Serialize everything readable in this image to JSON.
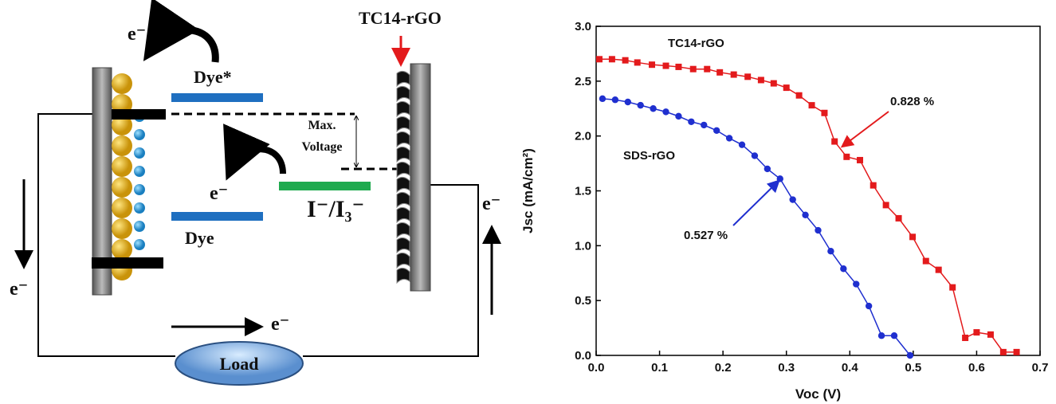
{
  "diagram": {
    "electron_top": "e⁻",
    "dye_excited": "Dye*",
    "max_voltage": [
      "Max.",
      "Voltage"
    ],
    "counter_electrode": "TC14-rGO",
    "electron_middle": "e⁻",
    "redox": "I⁻/I₃⁻",
    "dye_ground": "Dye",
    "electron_right": "e⁻",
    "electron_left": "e⁻",
    "electron_bottom": "e⁻",
    "load": "Load"
  },
  "chart_data": {
    "type": "line",
    "xlabel": "Voc (V)",
    "ylabel": "Jsc (mA/cm²)",
    "xlim": [
      0,
      0.7
    ],
    "ylim": [
      0,
      3.0
    ],
    "xticks": [
      {
        "value": 0,
        "label": "0.0"
      },
      0.1,
      0.2,
      0.3,
      0.4,
      0.5,
      0.6,
      0.7
    ],
    "yticks": [
      {
        "value": 0,
        "label": "0.0"
      },
      0.5,
      {
        "value": 1,
        "label": "1.0"
      },
      1.5,
      {
        "value": 2,
        "label": "2.0"
      },
      2.5,
      {
        "value": 3,
        "label": "3.0"
      }
    ],
    "annotations": [
      "0.828 %",
      "0.527 %"
    ],
    "series": [
      {
        "name": "TC14-rGO",
        "color": "#e31a1c",
        "marker": "square",
        "x": [
          0.005,
          0.025,
          0.046,
          0.065,
          0.088,
          0.11,
          0.13,
          0.153,
          0.175,
          0.195,
          0.217,
          0.239,
          0.26,
          0.28,
          0.3,
          0.32,
          0.34,
          0.36,
          0.376,
          0.395,
          0.416,
          0.437,
          0.457,
          0.477,
          0.499,
          0.52,
          0.54,
          0.562,
          0.582,
          0.6,
          0.622,
          0.642,
          0.663
        ],
        "values": [
          2.7,
          2.7,
          2.69,
          2.67,
          2.65,
          2.64,
          2.63,
          2.61,
          2.61,
          2.58,
          2.56,
          2.54,
          2.51,
          2.48,
          2.44,
          2.37,
          2.28,
          2.21,
          1.95,
          1.81,
          1.78,
          1.55,
          1.37,
          1.25,
          1.08,
          0.86,
          0.78,
          0.62,
          0.16,
          0.21,
          0.19,
          0.03,
          0.03
        ]
      },
      {
        "name": "SDS-rGO",
        "color": "#1f2fcf",
        "marker": "circle",
        "x": [
          0.01,
          0.03,
          0.05,
          0.07,
          0.09,
          0.11,
          0.13,
          0.15,
          0.17,
          0.19,
          0.21,
          0.23,
          0.25,
          0.27,
          0.29,
          0.31,
          0.33,
          0.35,
          0.37,
          0.39,
          0.41,
          0.43,
          0.45,
          0.47,
          0.495
        ],
        "values": [
          2.34,
          2.33,
          2.31,
          2.28,
          2.25,
          2.22,
          2.18,
          2.13,
          2.1,
          2.05,
          1.98,
          1.92,
          1.82,
          1.7,
          1.61,
          1.42,
          1.28,
          1.14,
          0.95,
          0.79,
          0.65,
          0.45,
          0.18,
          0.18,
          0.0
        ]
      }
    ]
  }
}
